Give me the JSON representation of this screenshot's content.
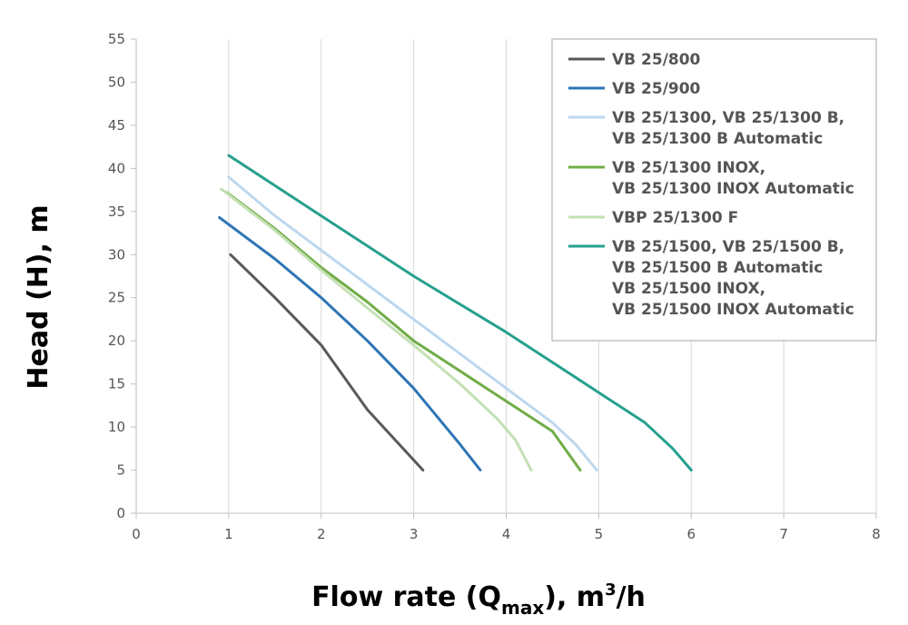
{
  "chart_data": {
    "type": "line",
    "xlabel": {
      "main": "Flow rate (Q",
      "sub": "max",
      "mid": "), m",
      "sup": "3",
      "tail": "/h"
    },
    "ylabel": "Head (H), m",
    "xlim": [
      0,
      8
    ],
    "ylim": [
      0,
      55
    ],
    "xticks": [
      0,
      1,
      2,
      3,
      4,
      5,
      6,
      7,
      8
    ],
    "yticks": [
      0,
      5,
      10,
      15,
      20,
      25,
      30,
      35,
      40,
      45,
      50,
      55
    ],
    "grid": "vertical",
    "legend_position": "top-right",
    "series": [
      {
        "name": [
          "VB 25/800"
        ],
        "color": "#595959",
        "x": [
          1.02,
          1.5,
          2.0,
          2.5,
          3.1
        ],
        "y": [
          30,
          25,
          19.5,
          12,
          5
        ]
      },
      {
        "name": [
          "VB 25/900"
        ],
        "color": "#2e75b6",
        "x": [
          0.9,
          1.5,
          2.0,
          2.5,
          3.0,
          3.5,
          3.72
        ],
        "y": [
          34.3,
          29.5,
          25,
          20,
          14.5,
          8,
          5
        ]
      },
      {
        "name": [
          "VB 25/1300, VB 25/1300 B,",
          "VB 25/1300 B Automatic"
        ],
        "color": "#bdd7ee",
        "x": [
          1.0,
          1.5,
          2.0,
          2.5,
          3.0,
          3.5,
          4.0,
          4.5,
          4.75,
          4.98
        ],
        "y": [
          39,
          34.5,
          30.5,
          26.5,
          22.5,
          18.5,
          14.5,
          10.5,
          8,
          5
        ]
      },
      {
        "name": [
          "VB 25/1300 INOX,",
          "VB 25/1300 INOX Automatic"
        ],
        "color": "#70ad47",
        "x": [
          0.98,
          1.5,
          2.0,
          2.5,
          3.0,
          3.5,
          4.0,
          4.5,
          4.8
        ],
        "y": [
          37.2,
          33,
          28.5,
          24.5,
          20,
          16.5,
          13,
          9.5,
          5
        ]
      },
      {
        "name": [
          "VBP 25/1300 F"
        ],
        "color": "#c5e0b4",
        "x": [
          0.92,
          1.5,
          2.0,
          2.5,
          3.0,
          3.5,
          3.9,
          4.1,
          4.27
        ],
        "y": [
          37.6,
          32.8,
          28.2,
          23.8,
          19.5,
          15,
          11,
          8.5,
          5
        ]
      },
      {
        "name": [
          "VB 25/1500, VB 25/1500 B,",
          "VB 25/1500 B Automatic",
          "VB 25/1500 INOX,",
          "VB 25/1500 INOX Automatic"
        ],
        "color": "#26a08f",
        "x": [
          1.0,
          2.0,
          3.0,
          4.0,
          5.0,
          5.5,
          5.8,
          6.0
        ],
        "y": [
          41.5,
          34.5,
          27.5,
          21,
          14,
          10.5,
          7.5,
          5
        ]
      }
    ]
  }
}
